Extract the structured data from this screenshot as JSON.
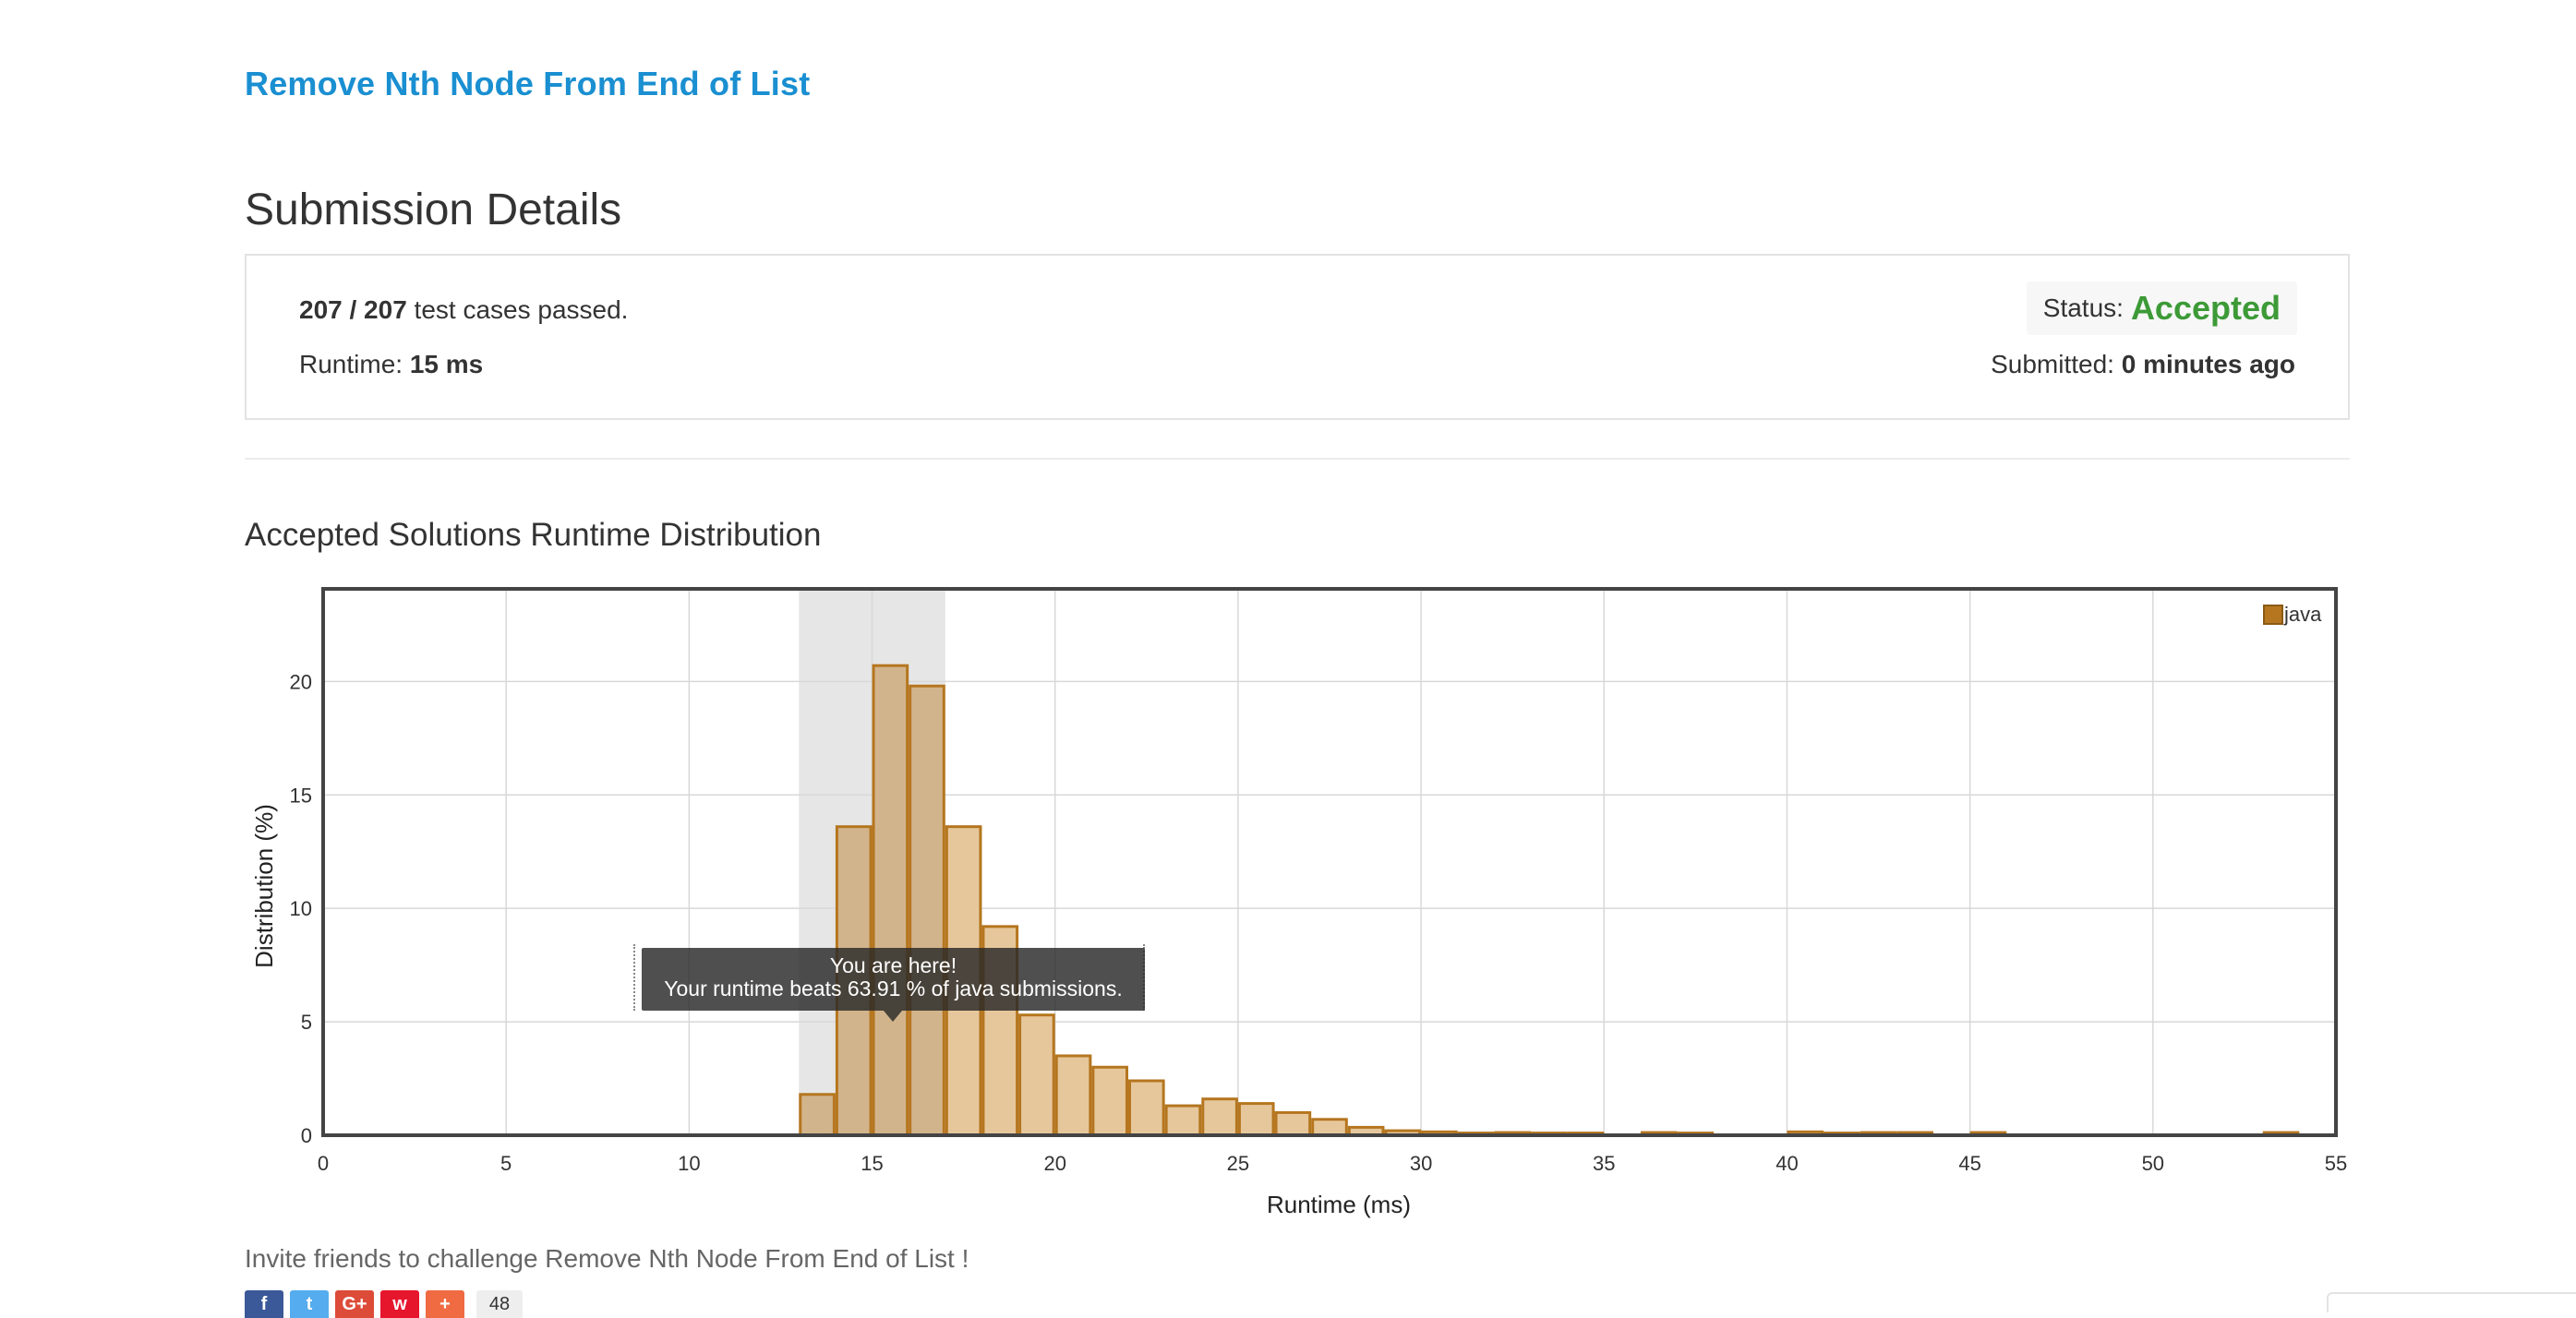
{
  "problem": {
    "title": "Remove Nth Node From End of List"
  },
  "page": {
    "title": "Submission Details"
  },
  "details": {
    "passed": "207 / 207",
    "passed_suffix": " test cases passed.",
    "runtime_label": "Runtime: ",
    "runtime_value": "15 ms",
    "status_label": "Status:",
    "status_value": "Accepted",
    "submitted_label": "Submitted: ",
    "submitted_value": "0 minutes ago"
  },
  "distribution": {
    "title": "Accepted Solutions Runtime Distribution"
  },
  "tooltip": {
    "line1": "You are here!",
    "line2": "Your runtime beats 63.91 % of java submissions."
  },
  "chart_data": {
    "type": "bar",
    "xlabel": "Runtime (ms)",
    "ylabel": "Distribution (%)",
    "xlim": [
      0,
      55
    ],
    "ylim": [
      0,
      24
    ],
    "xticks": [
      0,
      5,
      10,
      15,
      20,
      25,
      30,
      35,
      40,
      45,
      50,
      55
    ],
    "yticks": [
      0,
      5,
      10,
      15,
      20
    ],
    "highlight_range": [
      13,
      17
    ],
    "legend": "top-right",
    "grid": true,
    "bar_color": "#b5761f",
    "bar_fill": "#e6c79c",
    "series": [
      {
        "name": "java",
        "bins": [
          [
            13,
            1.8
          ],
          [
            14,
            13.6
          ],
          [
            15,
            20.7
          ],
          [
            16,
            19.8
          ],
          [
            17,
            13.6
          ],
          [
            18,
            9.2
          ],
          [
            19,
            5.3
          ],
          [
            20,
            3.5
          ],
          [
            21,
            3.0
          ],
          [
            22,
            2.4
          ],
          [
            23,
            1.3
          ],
          [
            24,
            1.6
          ],
          [
            25,
            1.4
          ],
          [
            26,
            1.0
          ],
          [
            27,
            0.7
          ],
          [
            28,
            0.35
          ],
          [
            29,
            0.2
          ],
          [
            30,
            0.15
          ],
          [
            31,
            0.1
          ],
          [
            32,
            0.12
          ],
          [
            33,
            0.1
          ],
          [
            34,
            0.1
          ],
          [
            36,
            0.12
          ],
          [
            37,
            0.1
          ],
          [
            40,
            0.15
          ],
          [
            41,
            0.1
          ],
          [
            42,
            0.12
          ],
          [
            43,
            0.12
          ],
          [
            45,
            0.12
          ],
          [
            53,
            0.12
          ]
        ]
      }
    ]
  },
  "invite": {
    "text": "Invite friends to challenge Remove Nth Node From End of List !"
  },
  "share": {
    "count": "48"
  }
}
